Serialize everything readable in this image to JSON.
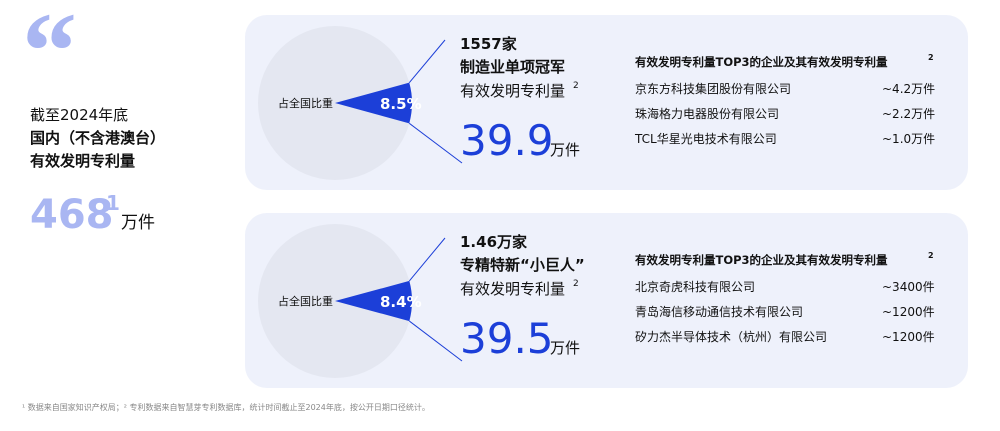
{
  "left": {
    "date": "截至2024年底",
    "scope": "国内（不含港澳台）",
    "metric": "有效发明专利量",
    "total": "468",
    "total_note": "1",
    "unit": "万件"
  },
  "panels": [
    {
      "count": "1557家",
      "group": "制造业单项冠军",
      "metric": "有效发明专利量",
      "metric_note": "2",
      "share_caption": "占全国比重",
      "share": 8.5,
      "share_label": "8.5%",
      "amount": "39.9",
      "unit": "万件",
      "top_title": "有效发明专利量TOP3的企业及其有效发明专利量",
      "top_title_note": "2",
      "top": [
        [
          "京东方科技集团股份有限公司",
          "~4.2万件"
        ],
        [
          "珠海格力电器股份有限公司",
          "~2.2万件"
        ],
        [
          "TCL华星光电技术有限公司",
          "~1.0万件"
        ]
      ]
    },
    {
      "count": "1.46万家",
      "group": "专精特新“小巨人”",
      "metric": "有效发明专利量",
      "metric_note": "2",
      "share_caption": "占全国比重",
      "share": 8.4,
      "share_label": "8.4%",
      "amount": "39.5",
      "unit": "万件",
      "top_title": "有效发明专利量TOP3的企业及其有效发明专利量",
      "top_title_note": "2",
      "top": [
        [
          "北京奇虎科技有限公司",
          "~3400件"
        ],
        [
          "青岛海信移动通信技术有限公司",
          "~1200件"
        ],
        [
          "矽力杰半导体技术（杭州）有限公司",
          "~1200件"
        ]
      ]
    }
  ],
  "footnote": "¹ 数据来自国家知识产权局；² 专利数据来自智慧芽专利数据库，统计时间截止至2024年底，按公开日期口径统计。"
}
